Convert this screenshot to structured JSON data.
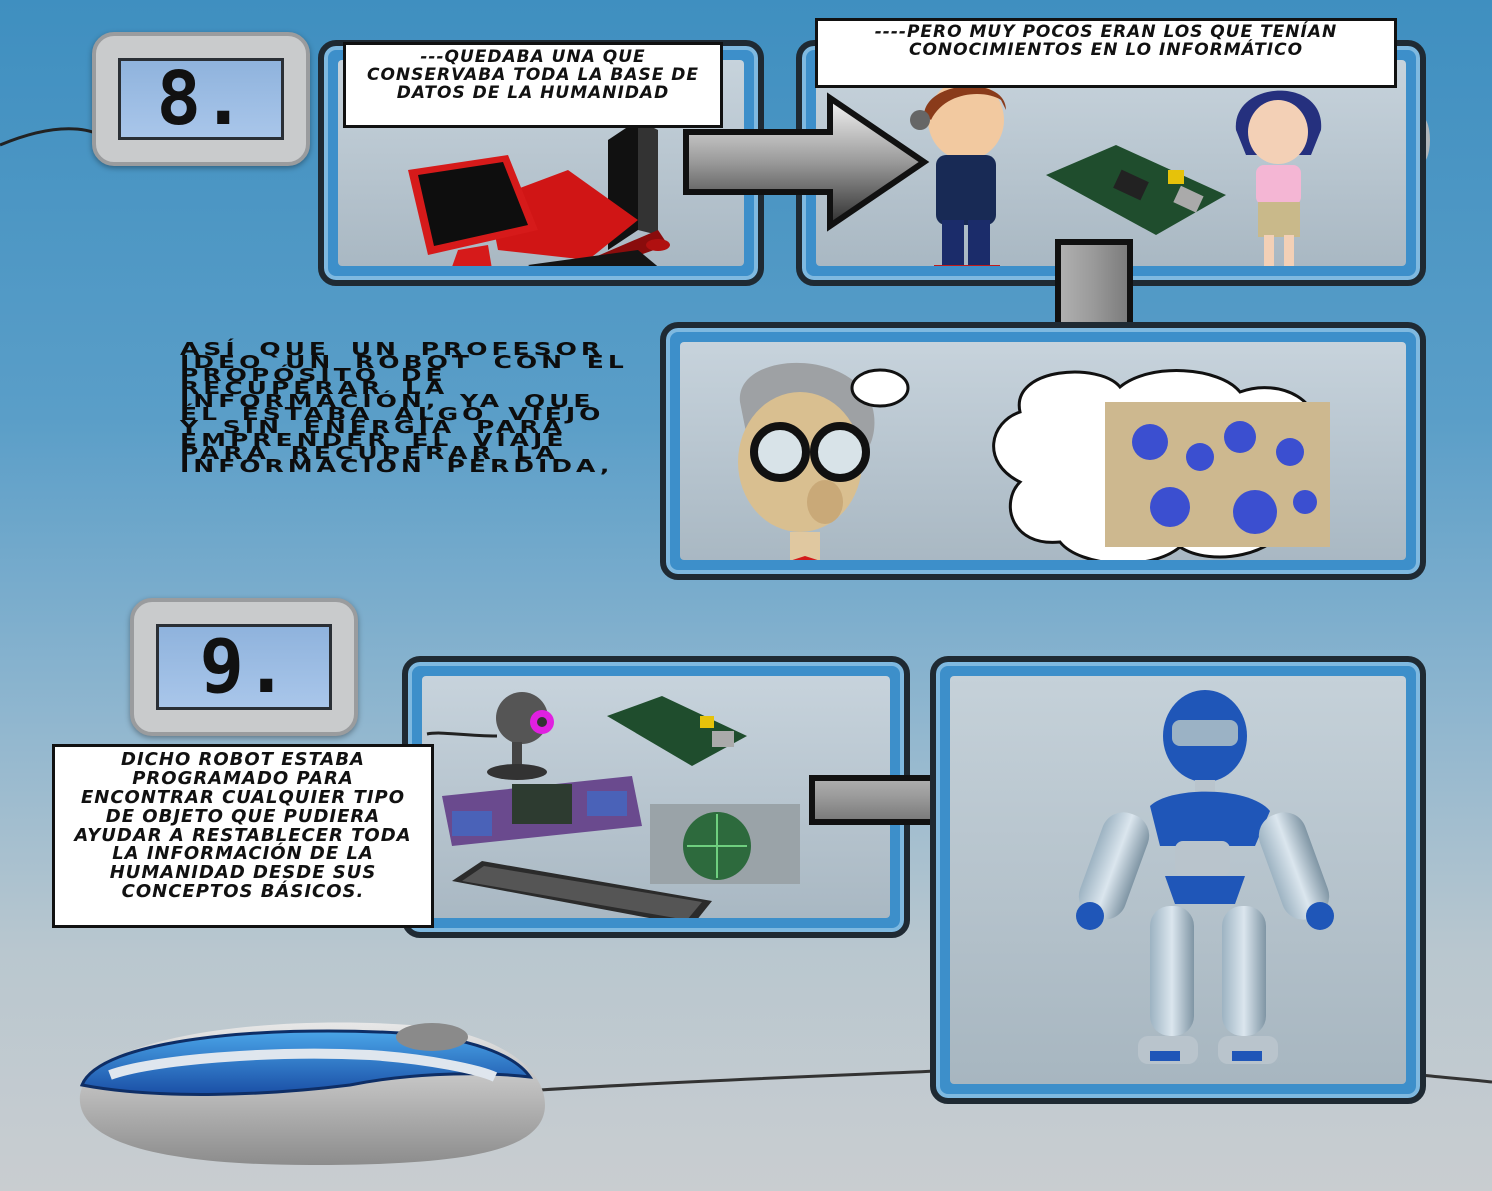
{
  "panel8": {
    "number": "8.",
    "caption_left": "---QUEDABA UNA QUE CONSERVABA TODA LA BASE DE DATOS DE LA HUMANIDAD",
    "caption_right": "----PERO MUY POCOS ERAN LOS QUE TENÍAN CONOCIMIENTOS EN LO INFORMÁTICO",
    "narration": "ASÍ QUE UN PROFESOR IDEO UN ROBOT CON EL PROPÓSITO DE RECUPERAR LA INFORMACIÓN, YA QUE ÉL ESTABA ALGO VIEJO Y SIN ENERGÍA PARA EMPRENDER EL VIAJE PARA RECUPERAR LA INFORMACIÓN PÉRDIDA,"
  },
  "panel9": {
    "number": "9.",
    "caption": "DICHO ROBOT ESTABA PROGRAMADO PARA ENCONTRAR CUALQUIER TIPO DE OBJETO QUE PUDIERA AYUDAR A RESTABLECER TODA LA INFORMACIÓN DE LA HUMANIDAD DESDE SUS CONCEPTOS BÁSICOS."
  },
  "colors": {
    "background_top": "#3f8fc0",
    "panel_border": "#1f2a33",
    "panel_frame": "#3d8fca",
    "robot_blue": "#1f56b8"
  },
  "icons": [
    "computer-icon",
    "arrow-right-icon",
    "arrow-down-icon",
    "webcam-icon",
    "circuit-board-icon",
    "keyboard-icon",
    "mouse-icon",
    "robot-icon",
    "professor-icon",
    "thought-bubble-icon"
  ]
}
